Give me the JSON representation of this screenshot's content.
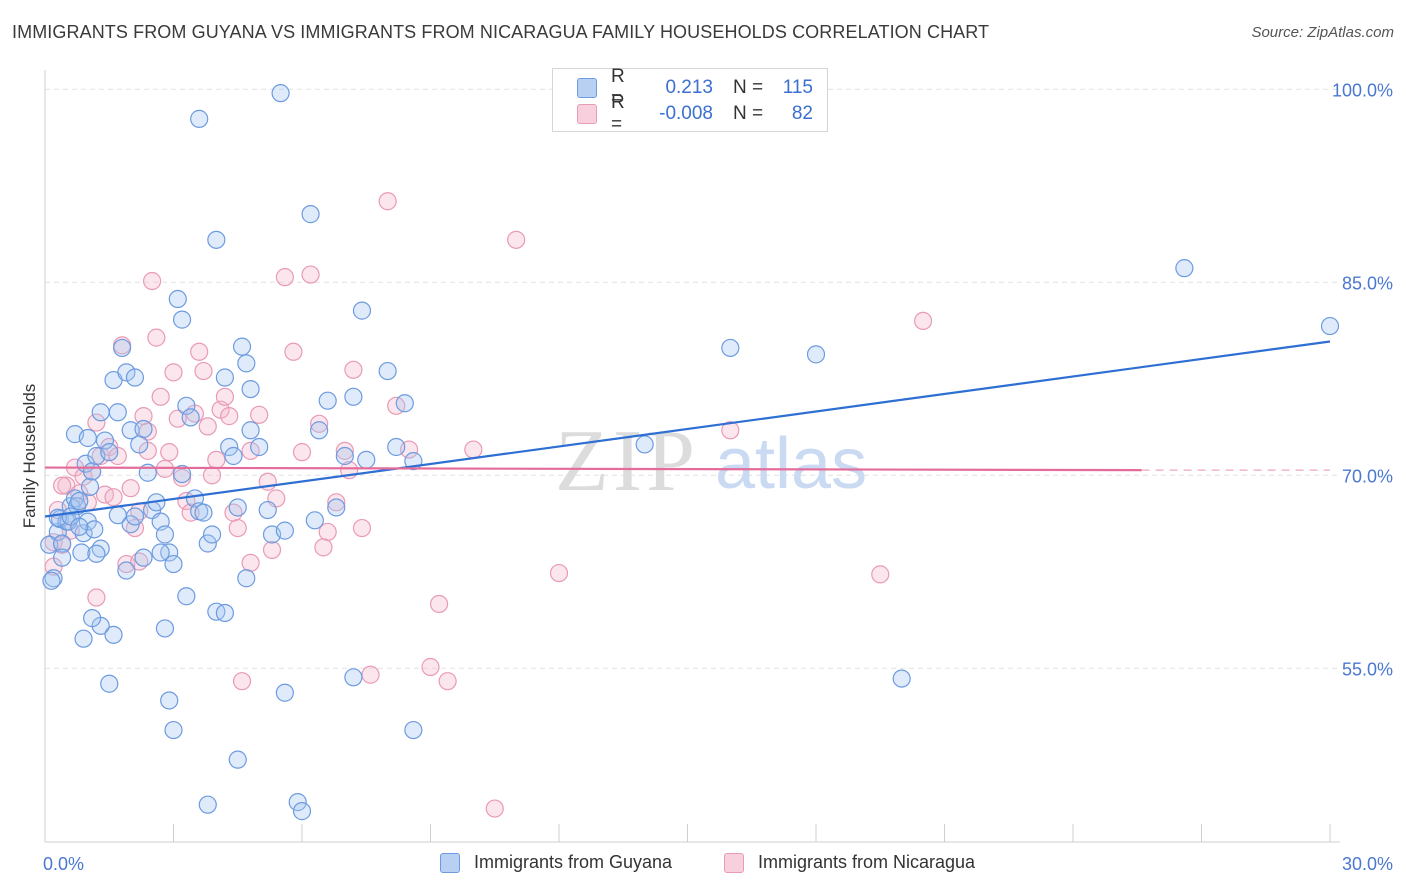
{
  "title": "IMMIGRANTS FROM GUYANA VS IMMIGRANTS FROM NICARAGUA FAMILY HOUSEHOLDS CORRELATION CHART",
  "source": "Source: ZipAtlas.com",
  "watermark": {
    "zip": "ZIP",
    "atlas": "atlas"
  },
  "legend_top": [
    {
      "r_label": "R =",
      "r_value": "0.213",
      "n_label": "N =",
      "n_value": "115"
    },
    {
      "r_label": "R =",
      "r_value": "-0.008",
      "n_label": "N =",
      "n_value": "82"
    }
  ],
  "legend_bottom": [
    "Immigrants from Guyana",
    "Immigrants from Nicaragua"
  ],
  "colors": {
    "blue_fill": "rgba(163,197,240,0.35)",
    "blue_stroke": "#6d9be0",
    "blue_line": "#2e6fd4",
    "pink_fill": "rgba(244,182,204,0.35)",
    "pink_stroke": "#e99ab7",
    "pink_line": "#e36c9a",
    "grid": "#e2e2e2",
    "tick_text": "#4a78d0"
  },
  "chart_data": {
    "type": "scatter",
    "title": "IMMIGRANTS FROM GUYANA VS IMMIGRANTS FROM NICARAGUA FAMILY HOUSEHOLDS CORRELATION CHART",
    "xlabel": "",
    "ylabel": "Family Households",
    "xlim": [
      0,
      30
    ],
    "ylim": [
      41.5,
      101.5
    ],
    "x_tick_labels": [
      "0.0%",
      "30.0%"
    ],
    "y_ticks": [
      55,
      70,
      85,
      100
    ],
    "y_tick_labels": [
      "55.0%",
      "70.0%",
      "85.0%",
      "100.0%"
    ],
    "series": [
      {
        "name": "Immigrants from Guyana",
        "color": "blue",
        "trend": {
          "x": [
            0,
            30
          ],
          "y": [
            66.8,
            80.4
          ]
        },
        "points": [
          [
            0.1,
            64.6
          ],
          [
            0.2,
            62.0
          ],
          [
            0.15,
            61.8
          ],
          [
            0.3,
            65.6
          ],
          [
            0.35,
            66.6
          ],
          [
            0.4,
            64.7
          ],
          [
            0.5,
            66.4
          ],
          [
            0.6,
            67.6
          ],
          [
            0.55,
            66.4
          ],
          [
            0.7,
            68.2
          ],
          [
            0.75,
            67.6
          ],
          [
            0.8,
            68.0
          ],
          [
            0.85,
            64.0
          ],
          [
            0.9,
            65.5
          ],
          [
            0.95,
            70.9
          ],
          [
            1.0,
            66.4
          ],
          [
            1.05,
            69.1
          ],
          [
            1.1,
            70.3
          ],
          [
            1.15,
            65.8
          ],
          [
            1.2,
            71.5
          ],
          [
            0.7,
            73.2
          ],
          [
            1.0,
            72.9
          ],
          [
            1.3,
            74.9
          ],
          [
            1.4,
            72.7
          ],
          [
            1.5,
            71.8
          ],
          [
            1.6,
            77.4
          ],
          [
            1.7,
            74.9
          ],
          [
            1.8,
            79.9
          ],
          [
            1.9,
            78.0
          ],
          [
            2.0,
            73.5
          ],
          [
            2.1,
            77.6
          ],
          [
            2.2,
            72.4
          ],
          [
            2.3,
            73.6
          ],
          [
            2.4,
            70.2
          ],
          [
            2.5,
            67.3
          ],
          [
            2.6,
            67.9
          ],
          [
            2.7,
            66.4
          ],
          [
            2.8,
            65.4
          ],
          [
            2.9,
            64.0
          ],
          [
            3.0,
            63.1
          ],
          [
            3.2,
            82.1
          ],
          [
            3.1,
            83.7
          ],
          [
            3.3,
            75.4
          ],
          [
            3.4,
            74.5
          ],
          [
            3.5,
            68.2
          ],
          [
            3.6,
            67.2
          ],
          [
            3.7,
            67.1
          ],
          [
            3.8,
            64.7
          ],
          [
            3.9,
            65.4
          ],
          [
            3.3,
            60.6
          ],
          [
            4.0,
            88.3
          ],
          [
            4.2,
            77.6
          ],
          [
            4.3,
            72.2
          ],
          [
            4.4,
            71.5
          ],
          [
            4.5,
            67.5
          ],
          [
            4.6,
            80.0
          ],
          [
            4.7,
            78.7
          ],
          [
            4.8,
            73.5
          ],
          [
            5.0,
            72.2
          ],
          [
            5.2,
            67.3
          ],
          [
            6.2,
            90.3
          ],
          [
            6.4,
            73.5
          ],
          [
            6.6,
            75.8
          ],
          [
            6.8,
            67.5
          ],
          [
            7.0,
            71.5
          ],
          [
            7.2,
            76.1
          ],
          [
            7.4,
            82.8
          ],
          [
            8.0,
            78.1
          ],
          [
            8.2,
            72.2
          ],
          [
            8.4,
            75.6
          ],
          [
            3.6,
            97.7
          ],
          [
            5.5,
            99.7
          ],
          [
            1.3,
            58.3
          ],
          [
            0.9,
            57.3
          ],
          [
            1.1,
            58.9
          ],
          [
            1.5,
            53.8
          ],
          [
            1.6,
            57.6
          ],
          [
            2.8,
            58.1
          ],
          [
            2.9,
            52.5
          ],
          [
            3.0,
            50.2
          ],
          [
            4.0,
            59.4
          ],
          [
            4.2,
            59.3
          ],
          [
            4.5,
            47.9
          ],
          [
            3.8,
            44.4
          ],
          [
            5.6,
            53.1
          ],
          [
            5.9,
            44.6
          ],
          [
            6.0,
            43.9
          ],
          [
            7.2,
            54.3
          ],
          [
            8.6,
            50.2
          ],
          [
            4.7,
            62.0
          ],
          [
            2.3,
            63.6
          ],
          [
            1.9,
            62.6
          ],
          [
            1.3,
            64.3
          ],
          [
            2.0,
            66.2
          ],
          [
            0.4,
            63.6
          ],
          [
            0.3,
            66.7
          ],
          [
            0.6,
            66.8
          ],
          [
            1.2,
            63.9
          ],
          [
            5.3,
            65.4
          ],
          [
            5.6,
            65.7
          ],
          [
            14.0,
            72.4
          ],
          [
            16.0,
            79.9
          ],
          [
            18.0,
            79.4
          ],
          [
            20.0,
            54.2
          ],
          [
            26.6,
            86.1
          ],
          [
            30.0,
            81.6
          ],
          [
            8.6,
            71.1
          ],
          [
            6.3,
            66.5
          ],
          [
            7.5,
            71.2
          ],
          [
            2.7,
            64.0
          ],
          [
            1.7,
            66.9
          ],
          [
            0.8,
            66.0
          ],
          [
            4.8,
            76.7
          ],
          [
            3.2,
            70.1
          ],
          [
            2.1,
            66.8
          ]
        ]
      },
      {
        "name": "Immigrants from Nicaragua",
        "color": "pink",
        "trend": {
          "x": [
            0,
            25.6
          ],
          "y": [
            70.6,
            70.4
          ]
        },
        "trend_dashed": {
          "x": [
            25.6,
            30
          ],
          "y": [
            70.4,
            70.4
          ]
        },
        "points": [
          [
            0.2,
            62.9
          ],
          [
            0.3,
            67.3
          ],
          [
            0.4,
            64.6
          ],
          [
            0.5,
            69.2
          ],
          [
            0.6,
            65.7
          ],
          [
            0.7,
            70.6
          ],
          [
            0.8,
            68.6
          ],
          [
            0.9,
            69.9
          ],
          [
            1.0,
            67.9
          ],
          [
            1.1,
            70.3
          ],
          [
            1.2,
            74.1
          ],
          [
            1.3,
            71.5
          ],
          [
            1.4,
            68.5
          ],
          [
            1.5,
            72.2
          ],
          [
            1.6,
            68.3
          ],
          [
            1.7,
            71.5
          ],
          [
            1.8,
            80.1
          ],
          [
            1.9,
            63.1
          ],
          [
            2.0,
            69.0
          ],
          [
            2.1,
            65.9
          ],
          [
            2.2,
            67.2
          ],
          [
            2.3,
            74.6
          ],
          [
            2.4,
            73.4
          ],
          [
            2.5,
            85.1
          ],
          [
            2.6,
            80.7
          ],
          [
            2.7,
            76.1
          ],
          [
            2.8,
            70.5
          ],
          [
            2.9,
            71.8
          ],
          [
            3.0,
            78.0
          ],
          [
            3.1,
            74.4
          ],
          [
            3.2,
            69.8
          ],
          [
            3.3,
            68.0
          ],
          [
            3.4,
            67.1
          ],
          [
            3.5,
            74.8
          ],
          [
            3.6,
            79.6
          ],
          [
            3.7,
            78.1
          ],
          [
            3.8,
            73.8
          ],
          [
            3.9,
            70.0
          ],
          [
            4.0,
            71.2
          ],
          [
            4.1,
            75.1
          ],
          [
            4.2,
            76.1
          ],
          [
            4.3,
            74.6
          ],
          [
            4.4,
            67.1
          ],
          [
            4.5,
            65.9
          ],
          [
            4.6,
            54.0
          ],
          [
            4.8,
            71.9
          ],
          [
            5.0,
            74.7
          ],
          [
            5.2,
            69.5
          ],
          [
            5.4,
            68.2
          ],
          [
            5.6,
            85.4
          ],
          [
            5.8,
            79.6
          ],
          [
            6.0,
            71.8
          ],
          [
            6.2,
            85.6
          ],
          [
            6.4,
            74.0
          ],
          [
            6.6,
            65.6
          ],
          [
            6.8,
            67.9
          ],
          [
            7.0,
            71.9
          ],
          [
            7.2,
            78.2
          ],
          [
            7.4,
            65.9
          ],
          [
            7.6,
            54.5
          ],
          [
            8.0,
            91.3
          ],
          [
            8.2,
            75.4
          ],
          [
            8.5,
            72.0
          ],
          [
            9.0,
            55.1
          ],
          [
            9.2,
            60.0
          ],
          [
            9.4,
            54.0
          ],
          [
            10.0,
            72.0
          ],
          [
            10.5,
            44.1
          ],
          [
            11.0,
            88.3
          ],
          [
            12.0,
            62.4
          ],
          [
            16.0,
            73.5
          ],
          [
            19.5,
            62.3
          ],
          [
            20.5,
            82.0
          ],
          [
            0.2,
            64.8
          ],
          [
            0.4,
            69.2
          ],
          [
            1.2,
            60.5
          ],
          [
            2.2,
            63.3
          ],
          [
            4.8,
            63.2
          ],
          [
            5.3,
            64.2
          ],
          [
            6.5,
            64.4
          ],
          [
            7.1,
            70.4
          ],
          [
            2.4,
            71.9
          ]
        ]
      }
    ]
  }
}
